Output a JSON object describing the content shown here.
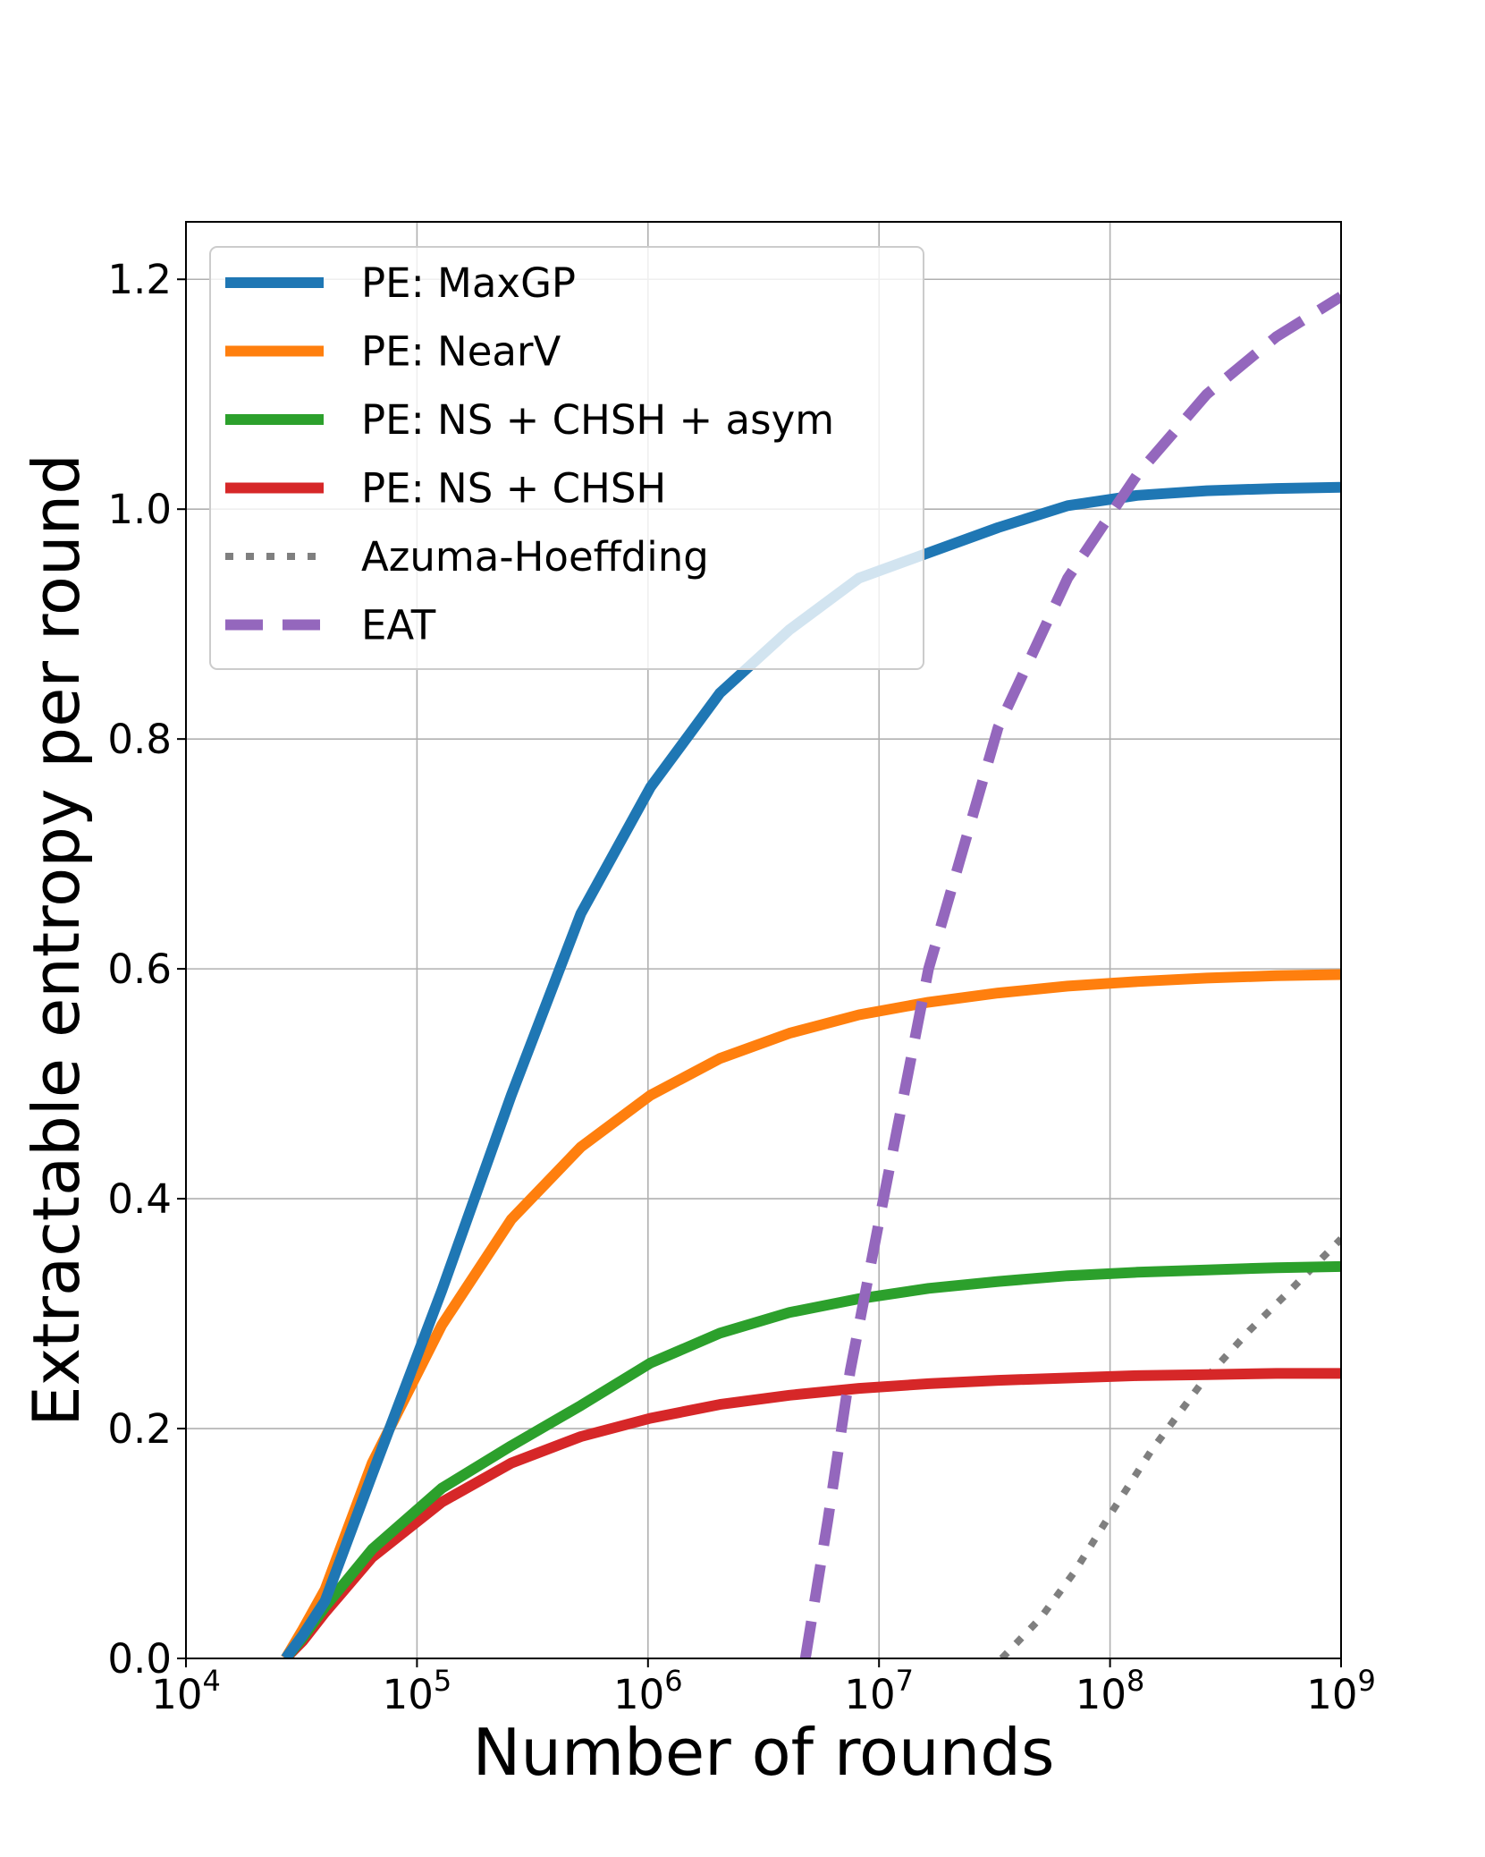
{
  "chart_data": {
    "type": "line",
    "title": "",
    "xlabel": "Number of rounds",
    "ylabel": "Extractable entropy per round",
    "xscale": "log",
    "xlim": [
      10000,
      1000000000
    ],
    "ylim": [
      0.0,
      1.25
    ],
    "grid": true,
    "legend_position": "upper-left",
    "x_ticks": [
      {
        "value": 10000,
        "base": "10",
        "exp": "4"
      },
      {
        "value": 100000,
        "base": "10",
        "exp": "5"
      },
      {
        "value": 1000000,
        "base": "10",
        "exp": "6"
      },
      {
        "value": 10000000,
        "base": "10",
        "exp": "7"
      },
      {
        "value": 100000000,
        "base": "10",
        "exp": "8"
      },
      {
        "value": 1000000000,
        "base": "10",
        "exp": "9"
      }
    ],
    "y_ticks": [
      {
        "value": 0.0,
        "label": "0.0"
      },
      {
        "value": 0.2,
        "label": "0.2"
      },
      {
        "value": 0.4,
        "label": "0.4"
      },
      {
        "value": 0.6,
        "label": "0.6"
      },
      {
        "value": 0.8,
        "label": "0.8"
      },
      {
        "value": 1.0,
        "label": "1.0"
      },
      {
        "value": 1.2,
        "label": "1.2"
      }
    ],
    "series": [
      {
        "name": "PE: MaxGP",
        "key": "maxgp",
        "color": "#1f77b4",
        "style": "solid",
        "x": [
          27000,
          32000,
          40000,
          64000,
          128000,
          256000,
          512000,
          1024000,
          2048000,
          4096000,
          8192000,
          16384000,
          32768000,
          65536000,
          131072000,
          262144000,
          524288000,
          1000000000
        ],
        "y": [
          0.0,
          0.02,
          0.05,
          0.16,
          0.32,
          0.49,
          0.648,
          0.758,
          0.84,
          0.895,
          0.94,
          0.962,
          0.984,
          1.003,
          1.012,
          1.016,
          1.018,
          1.019
        ]
      },
      {
        "name": "PE: NearV",
        "key": "nearv",
        "color": "#ff7f0e",
        "style": "solid",
        "x": [
          27000,
          32000,
          40000,
          64000,
          128000,
          256000,
          512000,
          1024000,
          2048000,
          4096000,
          8192000,
          16384000,
          32768000,
          65536000,
          131072000,
          262144000,
          524288000,
          1000000000
        ],
        "y": [
          0.0,
          0.025,
          0.06,
          0.17,
          0.29,
          0.382,
          0.445,
          0.49,
          0.522,
          0.544,
          0.56,
          0.571,
          0.579,
          0.585,
          0.589,
          0.592,
          0.594,
          0.595
        ]
      },
      {
        "name": "PE: NS + CHSH + asym",
        "key": "ns_chsh_asym",
        "color": "#2ca02c",
        "style": "solid",
        "x": [
          27000,
          32000,
          40000,
          64000,
          128000,
          256000,
          512000,
          1024000,
          2048000,
          4096000,
          8192000,
          16384000,
          32768000,
          65536000,
          131072000,
          262144000,
          524288000,
          1000000000
        ],
        "y": [
          0.0,
          0.018,
          0.045,
          0.095,
          0.148,
          0.185,
          0.22,
          0.257,
          0.283,
          0.301,
          0.313,
          0.322,
          0.328,
          0.333,
          0.336,
          0.338,
          0.34,
          0.341
        ]
      },
      {
        "name": "PE: NS + CHSH",
        "key": "ns_chsh",
        "color": "#d62728",
        "style": "solid",
        "x": [
          27000,
          32000,
          40000,
          64000,
          128000,
          256000,
          512000,
          1024000,
          2048000,
          4096000,
          8192000,
          16384000,
          32768000,
          65536000,
          131072000,
          262144000,
          524288000,
          1000000000
        ],
        "y": [
          0.0,
          0.015,
          0.04,
          0.088,
          0.136,
          0.17,
          0.193,
          0.209,
          0.221,
          0.229,
          0.235,
          0.239,
          0.242,
          0.244,
          0.246,
          0.247,
          0.248,
          0.248
        ]
      },
      {
        "name": "Azuma-Hoeffding",
        "key": "azuma",
        "color": "#7f7f7f",
        "style": "dotted",
        "x": [
          34000000,
          50000000,
          70000000,
          100000000,
          150000000,
          250000000,
          400000000,
          600000000,
          1000000000
        ],
        "y": [
          0.0,
          0.035,
          0.075,
          0.125,
          0.18,
          0.24,
          0.285,
          0.32,
          0.365
        ]
      },
      {
        "name": "EAT",
        "key": "eat",
        "color": "#9467bd",
        "style": "dashed",
        "x": [
          4800000,
          6000000,
          7500000,
          10000000,
          16384000,
          32768000,
          65536000,
          131072000,
          262144000,
          524288000,
          1000000000
        ],
        "y": [
          0.0,
          0.12,
          0.25,
          0.38,
          0.6,
          0.81,
          0.94,
          1.03,
          1.1,
          1.15,
          1.185
        ]
      }
    ]
  }
}
